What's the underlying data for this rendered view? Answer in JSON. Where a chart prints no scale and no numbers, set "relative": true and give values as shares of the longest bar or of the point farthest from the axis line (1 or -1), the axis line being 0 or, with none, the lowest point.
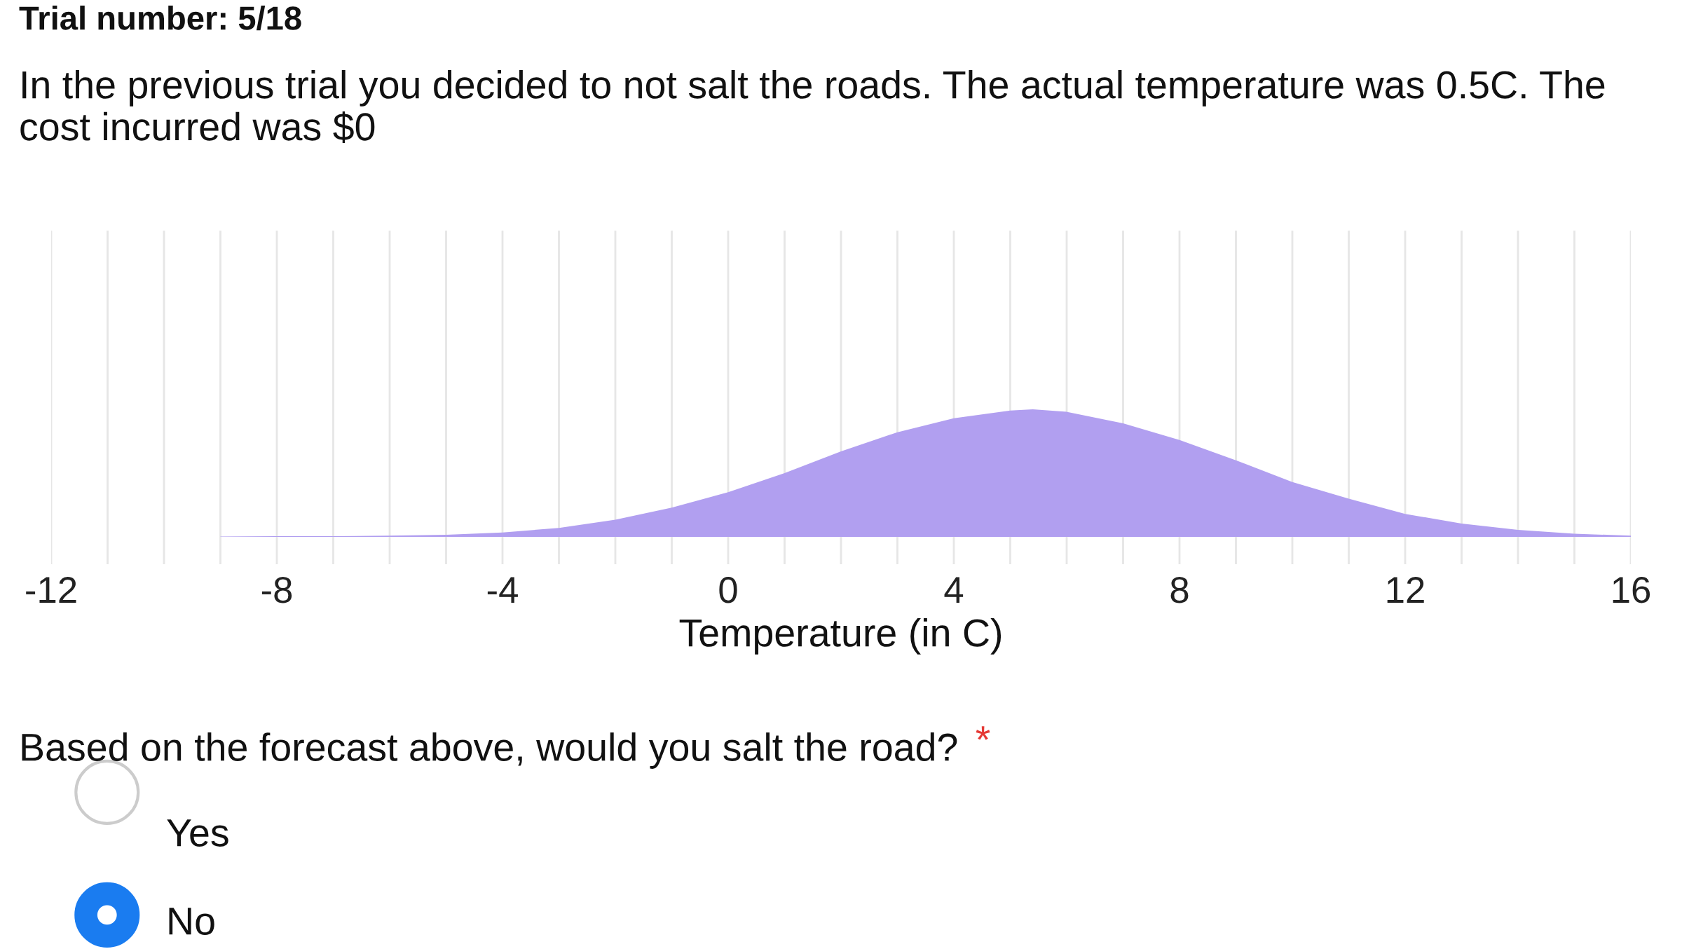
{
  "chart_data": {
    "type": "area",
    "title": "Trial number: 5/18",
    "subtitle": "In the previous trial you decided to not salt the roads. The actual temperature was 0.5C. The cost incurred was $0",
    "xlabel": "Temperature (in C)",
    "relative": true,
    "color": "#b19ff0",
    "x": [
      -9,
      -8,
      -7,
      -6,
      -5,
      -4,
      -3,
      -2,
      -1,
      0,
      1,
      2,
      3,
      4,
      5,
      5.4,
      6,
      7,
      8,
      9,
      10,
      11,
      12,
      13,
      14,
      15,
      16
    ],
    "values": [
      0.003,
      0.005,
      0.006,
      0.01,
      0.017,
      0.035,
      0.07,
      0.135,
      0.23,
      0.35,
      0.5,
      0.67,
      0.82,
      0.93,
      0.99,
      1,
      0.98,
      0.89,
      0.76,
      0.6,
      0.43,
      0.3,
      0.18,
      0.105,
      0.055,
      0.025,
      0.01
    ],
    "xlim": [
      -12,
      16
    ],
    "xticks": [
      -12,
      {
        "value": -11,
        "label": null
      },
      {
        "value": -10,
        "label": null
      },
      {
        "value": -9,
        "label": null
      },
      -8,
      {
        "value": -7,
        "label": null
      },
      {
        "value": -6,
        "label": null
      },
      {
        "value": -5,
        "label": null
      },
      -4,
      {
        "value": -3,
        "label": null
      },
      {
        "value": -2,
        "label": null
      },
      {
        "value": -1,
        "label": null
      },
      0,
      {
        "value": 1,
        "label": null
      },
      {
        "value": 2,
        "label": null
      },
      {
        "value": 3,
        "label": null
      },
      4,
      {
        "value": 5,
        "label": null
      },
      {
        "value": 6,
        "label": null
      },
      {
        "value": 7,
        "label": null
      },
      8,
      {
        "value": 9,
        "label": null
      },
      {
        "value": 10,
        "label": null
      },
      {
        "value": 11,
        "label": null
      },
      12,
      {
        "value": 13,
        "label": null
      },
      {
        "value": 14,
        "label": null
      },
      {
        "value": 15,
        "label": null
      },
      16
    ],
    "grid": "x",
    "tick_labels": "x",
    "annotations": [
      "Based on the forecast above, would you salt the road?",
      "*",
      "Yes",
      "No"
    ]
  }
}
